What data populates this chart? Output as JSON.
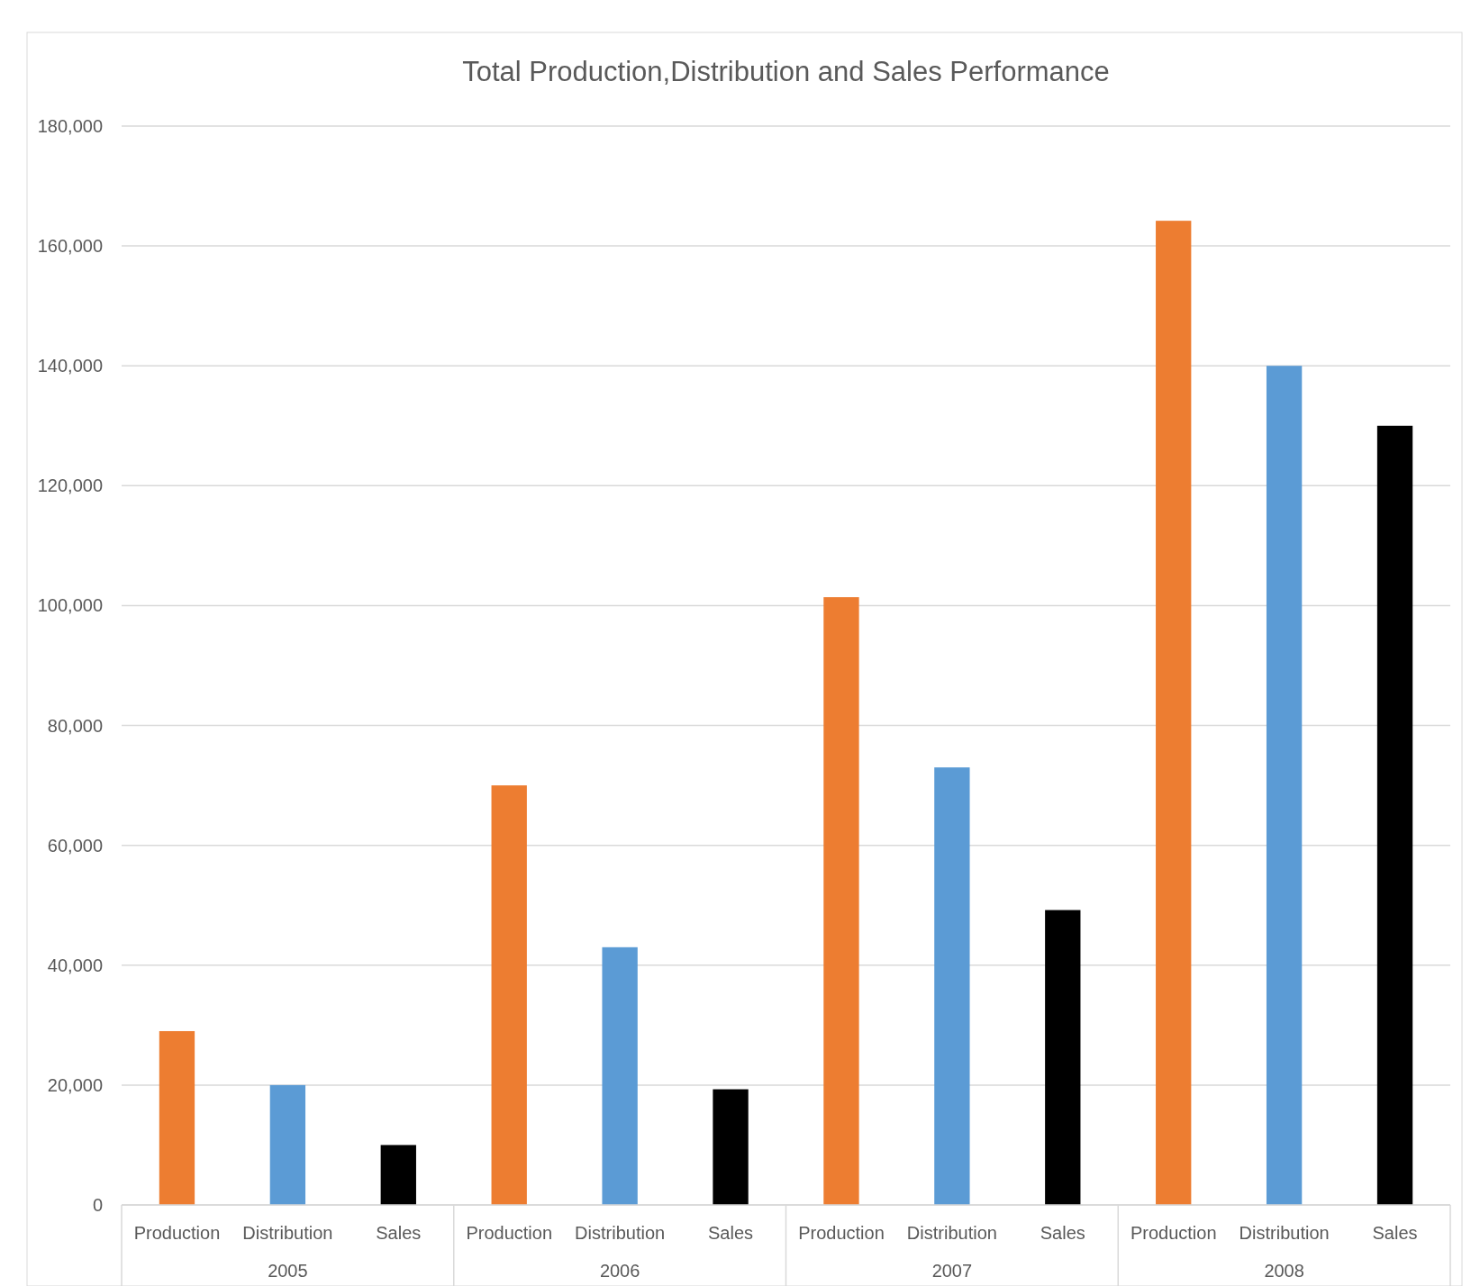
{
  "chart_data": {
    "type": "bar",
    "title": "Total Production,Distribution and Sales Performance",
    "categories": [
      "Production",
      "Distribution",
      "Sales",
      "Production",
      "Distribution",
      "Sales",
      "Production",
      "Distribution",
      "Sales",
      "Production",
      "Distribution",
      "Sales"
    ],
    "values": [
      29000,
      20000,
      10000,
      70000,
      43000,
      19300,
      101400,
      73000,
      49200,
      164200,
      140000,
      130000
    ],
    "colors": [
      "#ed7d31",
      "#5b9bd5",
      "#000000",
      "#ed7d31",
      "#5b9bd5",
      "#000000",
      "#ed7d31",
      "#5b9bd5",
      "#000000",
      "#ed7d31",
      "#5b9bd5",
      "#000000"
    ],
    "annotations": [
      "2005",
      "2006",
      "2007",
      "2008"
    ],
    "ylim": [
      0,
      180000
    ],
    "yticks": [
      {
        "value": 0,
        "label": "0"
      },
      {
        "value": 20000,
        "label": "20,000"
      },
      {
        "value": 40000,
        "label": "40,000"
      },
      {
        "value": 60000,
        "label": "60,000"
      },
      {
        "value": 80000,
        "label": "80,000"
      },
      {
        "value": 100000,
        "label": "100,000"
      },
      {
        "value": 120000,
        "label": "120,000"
      },
      {
        "value": 140000,
        "label": "140,000"
      },
      {
        "value": 160000,
        "label": "160,000"
      },
      {
        "value": 180000,
        "label": "180,000"
      }
    ],
    "grid": "y"
  }
}
